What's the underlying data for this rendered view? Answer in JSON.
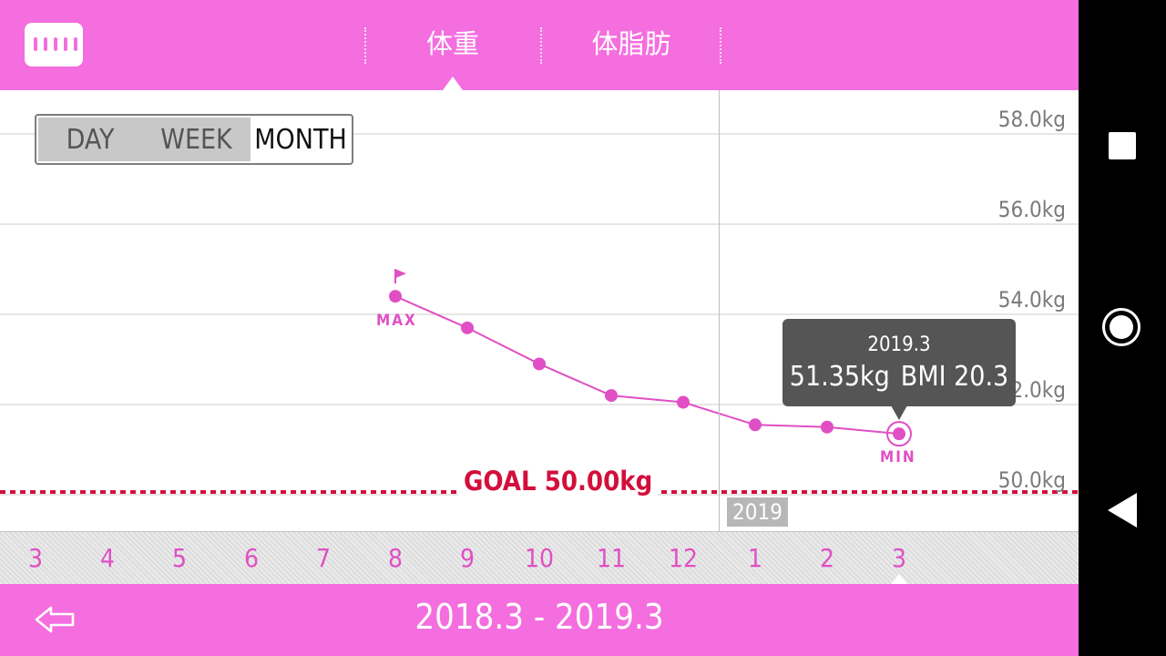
{
  "header": {
    "tabs": [
      {
        "label": "体重",
        "selected": true
      },
      {
        "label": "体脂肪",
        "selected": false
      }
    ]
  },
  "range_toggle": {
    "options": [
      "DAY",
      "WEEK",
      "MONTH"
    ],
    "selected": "MONTH"
  },
  "goal": {
    "label": "GOAL 50.00kg",
    "value": 50.0
  },
  "chart_data": {
    "type": "line",
    "x": [
      "3",
      "4",
      "5",
      "6",
      "7",
      "8",
      "9",
      "10",
      "11",
      "12",
      "1",
      "2",
      "3"
    ],
    "y_tick_labels": [
      "58.0kg",
      "56.0kg",
      "54.0kg",
      "52.0kg",
      "50.0kg"
    ],
    "y_ticks": [
      58,
      56,
      54,
      52,
      50
    ],
    "ylim": [
      49.7,
      58.0
    ],
    "series": [
      {
        "values": [
          null,
          null,
          null,
          null,
          null,
          54.4,
          53.7,
          52.9,
          52.2,
          52.05,
          51.55,
          51.5,
          51.35
        ]
      }
    ],
    "year_marker": {
      "label": "2019",
      "at_index": 10
    },
    "max": {
      "label": "MAX",
      "index": 5
    },
    "min": {
      "label": "MIN",
      "index": 12
    },
    "colors": {
      "line": "#e04fc4",
      "goal": "#d30f3c",
      "grid": "#cccccc"
    }
  },
  "tooltip": {
    "date": "2019.3",
    "weight": "51.35kg",
    "bmi": "BMI 20.3"
  },
  "footer": {
    "period": "2018.3 - 2019.3",
    "back_icon": "back-arrow-icon"
  },
  "navbar": {
    "icons": [
      "recents-icon",
      "home-icon",
      "back-icon"
    ]
  }
}
